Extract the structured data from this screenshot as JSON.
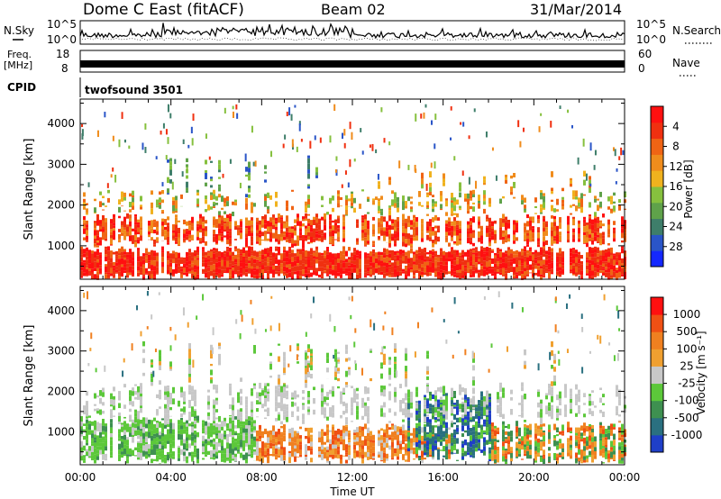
{
  "header": {
    "station": "Dome C East (fitACF)",
    "beam": "Beam 02",
    "date": "31/Mar/2014"
  },
  "nsky_panel": {
    "left_label": "N.Sky",
    "right_label": "N.Search",
    "yticks": [
      "10^5",
      "10^0"
    ]
  },
  "freq_panel": {
    "left_label_line1": "Freq.",
    "left_label_line2": "[MHz]",
    "left_ticks": [
      "18",
      "8"
    ],
    "right_label": "Nave",
    "right_ticks": [
      "60",
      "0"
    ]
  },
  "cpid_panel": {
    "label": "CPID",
    "value": "twofsound 3501"
  },
  "chart_data": [
    {
      "type": "heatmap",
      "title": "",
      "ylabel": "Slant Range [km]",
      "xlabel": "",
      "ylim": [
        180,
        4600
      ],
      "yticks": [
        1000,
        2000,
        3000,
        4000
      ],
      "xticks": [
        "00:00",
        "04:00",
        "08:00",
        "12:00",
        "16:00",
        "20:00",
        "00:00"
      ],
      "colorbar": {
        "label": "Power [dB]",
        "ticks": [
          "4",
          "8",
          "12",
          "16",
          "20",
          "24",
          "28"
        ],
        "colors": [
          "#1428ff",
          "#2a55c8",
          "#3e7e6a",
          "#5fa24a",
          "#86c03e",
          "#f0b21e",
          "#f08c1c",
          "#f06414",
          "#f03010",
          "#ff1010"
        ]
      }
    },
    {
      "type": "heatmap",
      "title": "",
      "ylabel": "Slant Range [km]",
      "xlabel": "Time UT",
      "ylim": [
        180,
        4600
      ],
      "yticks": [
        1000,
        2000,
        3000,
        4000
      ],
      "xticks": [
        "00:00",
        "04:00",
        "08:00",
        "12:00",
        "16:00",
        "20:00",
        "00:00"
      ],
      "colorbar": {
        "label": "Velocity [m s⁻¹]",
        "ticks": [
          "1000",
          "500",
          "100",
          "25",
          "-25",
          "-100",
          "-500",
          "-1000"
        ],
        "colors": [
          "#1f3fc8",
          "#2a7080",
          "#3e9050",
          "#5cc83a",
          "#c8c8c8",
          "#f0a030",
          "#f08020",
          "#f05014",
          "#ff1010"
        ]
      }
    }
  ]
}
